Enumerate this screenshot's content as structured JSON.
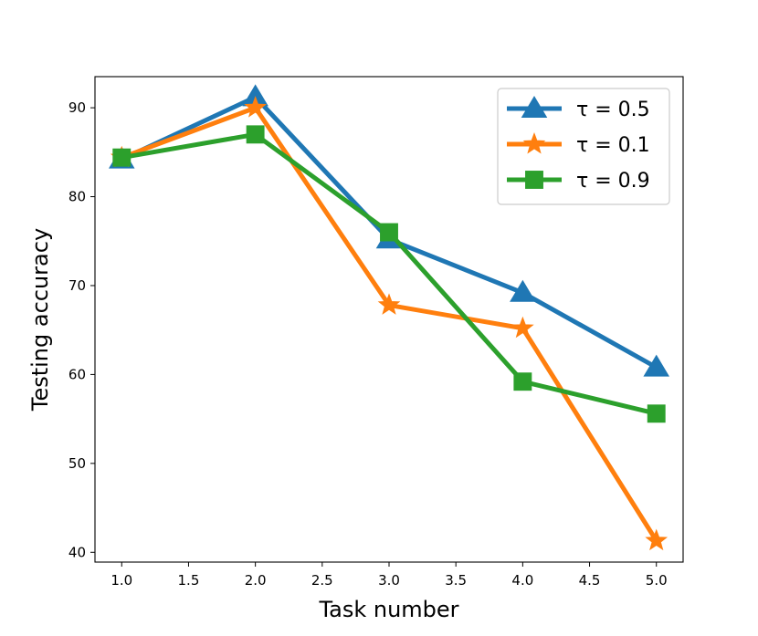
{
  "chart_data": {
    "type": "line",
    "title": "",
    "xlabel": "Task number",
    "ylabel": "Testing accuracy",
    "x": [
      1.0,
      2.0,
      3.0,
      4.0,
      5.0
    ],
    "xlim": [
      0.8,
      5.2
    ],
    "ylim": [
      38.9,
      93.5
    ],
    "xticks": [
      "1.0",
      "1.5",
      "2.0",
      "2.5",
      "3.0",
      "3.5",
      "4.0",
      "4.5",
      "5.0"
    ],
    "yticks": [
      "40",
      "50",
      "60",
      "70",
      "80",
      "90"
    ],
    "grid": false,
    "legend_position": "top-right",
    "series": [
      {
        "name": "τ = 0.5",
        "color": "#1f77b4",
        "marker": "triangle",
        "values": [
          84.2,
          91.2,
          75.2,
          69.2,
          60.8
        ]
      },
      {
        "name": "τ = 0.1",
        "color": "#ff7f0e",
        "marker": "star",
        "values": [
          84.4,
          90.0,
          67.8,
          65.2,
          41.3
        ]
      },
      {
        "name": "τ = 0.9",
        "color": "#2ca02c",
        "marker": "square",
        "values": [
          84.4,
          87.0,
          76.0,
          59.2,
          55.6
        ]
      }
    ]
  }
}
